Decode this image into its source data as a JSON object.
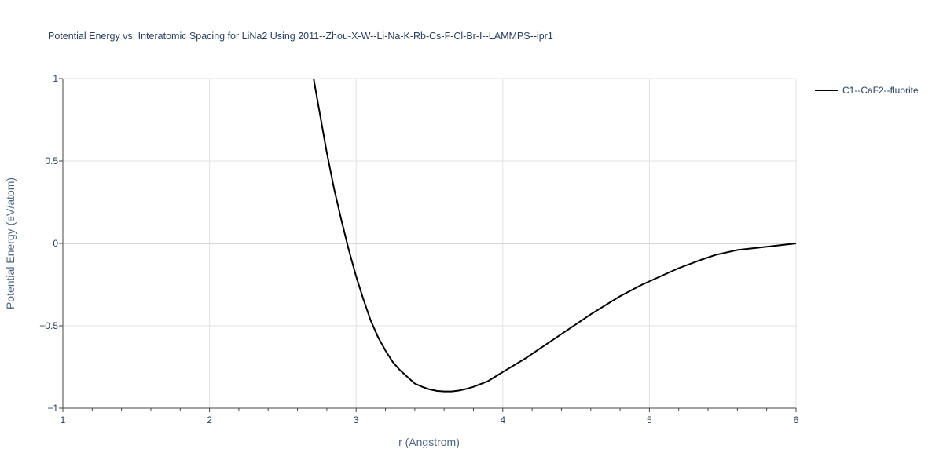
{
  "chart_data": {
    "type": "line",
    "title": "Potential Energy vs. Interatomic Spacing for LiNa2 Using 2011--Zhou-X-W--Li-Na-K-Rb-Cs-F-Cl-Br-I--LAMMPS--ipr1",
    "xlabel": "r (Angstrom)",
    "ylabel": "Potential Energy (eV/atom)",
    "xlim": [
      1,
      6
    ],
    "ylim": [
      -1,
      1
    ],
    "x_ticks": [
      "1",
      "2",
      "3",
      "4",
      "5",
      "6"
    ],
    "y_ticks": [
      "1",
      "0.5",
      "0",
      "−0.5",
      "−1"
    ],
    "x_tick_values": [
      1,
      2,
      3,
      4,
      5,
      6
    ],
    "y_tick_values": [
      1,
      0.5,
      0,
      -0.5,
      -1
    ],
    "grid": true,
    "legend_position": "top-right",
    "series": [
      {
        "name": "C1--CaF2--fluorite",
        "color": "#000000",
        "x": [
          2.71,
          2.75,
          2.8,
          2.85,
          2.9,
          2.95,
          3.0,
          3.05,
          3.1,
          3.15,
          3.2,
          3.25,
          3.3,
          3.35,
          3.4,
          3.45,
          3.5,
          3.55,
          3.6,
          3.65,
          3.7,
          3.75,
          3.8,
          3.9,
          4.0,
          4.15,
          4.3,
          4.45,
          4.6,
          4.8,
          4.95,
          5.1,
          5.2,
          5.35,
          5.45,
          5.6,
          5.8,
          5.9,
          6.0
        ],
        "y": [
          1.0,
          0.8,
          0.55,
          0.33,
          0.14,
          -0.04,
          -0.2,
          -0.34,
          -0.47,
          -0.57,
          -0.65,
          -0.72,
          -0.77,
          -0.81,
          -0.85,
          -0.87,
          -0.885,
          -0.895,
          -0.898,
          -0.898,
          -0.893,
          -0.883,
          -0.87,
          -0.835,
          -0.78,
          -0.7,
          -0.61,
          -0.52,
          -0.43,
          -0.32,
          -0.25,
          -0.19,
          -0.15,
          -0.1,
          -0.07,
          -0.04,
          -0.02,
          -0.01,
          0.0
        ]
      }
    ]
  }
}
